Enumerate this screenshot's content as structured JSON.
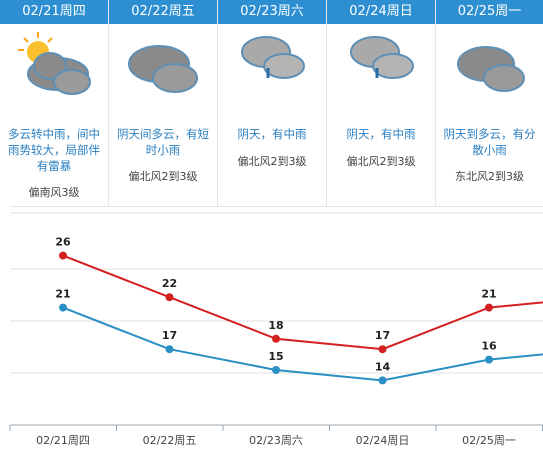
{
  "days": [
    {
      "date": "02/21周四",
      "icon": "partly-cloudy-sun-icon",
      "desc_lines": [
        "多云转中雨，间中",
        "雨势较大，局部伴",
        "有雷暴"
      ],
      "wind": "偏南风3级"
    },
    {
      "date": "02/22周五",
      "icon": "cloudy-icon",
      "desc_lines": [
        "阴天间多云，有短",
        "时小雨"
      ],
      "wind": "偏北风2到3级"
    },
    {
      "date": "02/23周六",
      "icon": "cloud-rain-icon",
      "desc_lines": [
        "阴天，有中雨"
      ],
      "wind": "偏北风2到3级"
    },
    {
      "date": "02/24周日",
      "icon": "cloud-rain-icon",
      "desc_lines": [
        "阴天，有中雨"
      ],
      "wind": "偏北风2到3级"
    },
    {
      "date": "02/25周一",
      "icon": "cloudy-icon",
      "desc_lines": [
        "阴天到多云，有分",
        "散小雨"
      ],
      "wind": "东北风2到3级"
    }
  ],
  "chart_data": {
    "type": "line",
    "categories": [
      "02/21周四",
      "02/22周五",
      "02/23周六",
      "02/24周日",
      "02/25周一"
    ],
    "series": [
      {
        "values": [
          26,
          22,
          18,
          17,
          21
        ],
        "color": "#d42020"
      },
      {
        "values": [
          21,
          17,
          15,
          14,
          16
        ],
        "color": "#2a8fc4"
      }
    ],
    "offchart_next": {
      "high": 22,
      "low": 17
    },
    "ylim": [
      10,
      28
    ],
    "grid": true
  },
  "colors": {
    "header": "#2d8fd2",
    "desc": "#2a7fc0",
    "high": "#d42020",
    "low": "#2a8fc4"
  }
}
